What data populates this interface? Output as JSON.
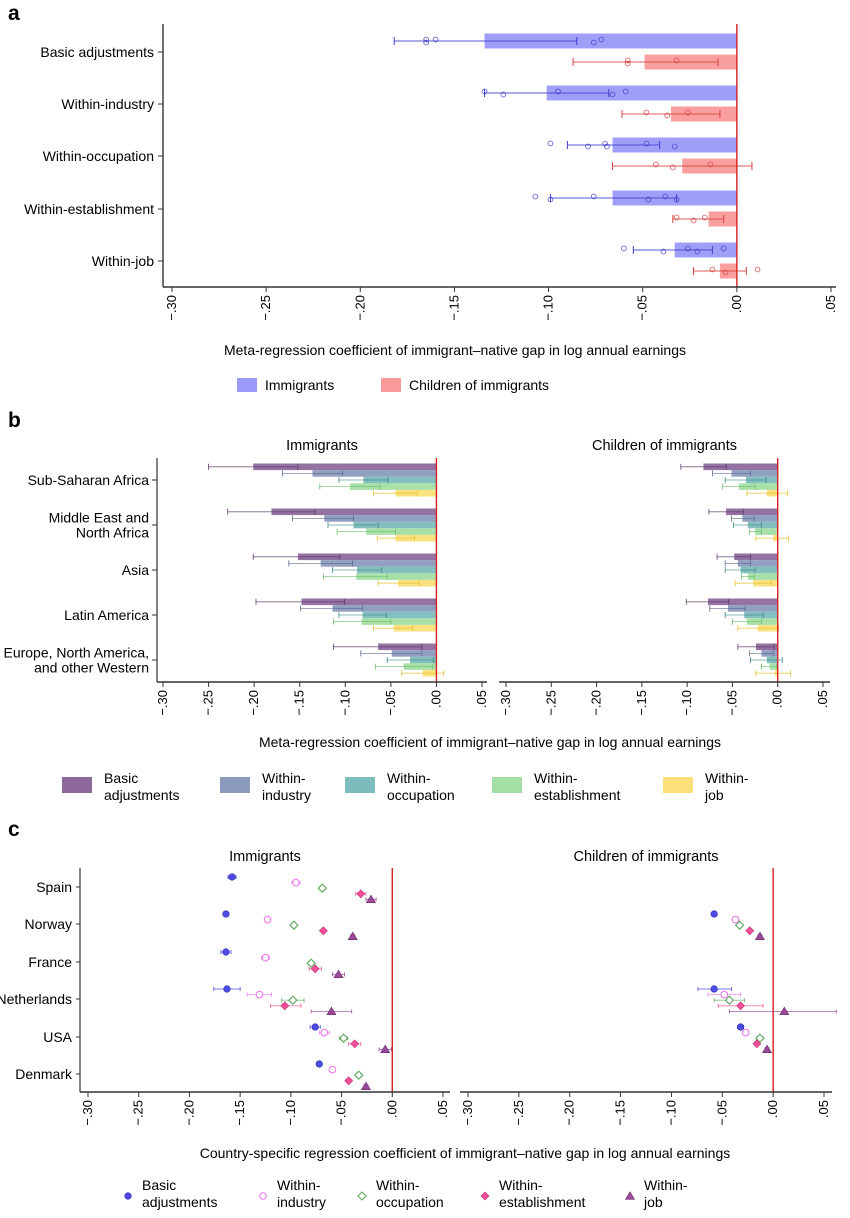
{
  "figure": {
    "panels": [
      "a",
      "b",
      "c"
    ]
  },
  "chart_data": [
    {
      "id": "a",
      "type": "bar",
      "orientation": "horizontal",
      "panel_label": "a",
      "xlabel": "Meta-regression coefficient of immigrant–native gap in log annual earnings",
      "ylabel": "",
      "xlim": [
        -0.3,
        0.05
      ],
      "xticks": [
        -0.3,
        -0.25,
        -0.2,
        -0.15,
        -0.1,
        -0.05,
        0.0,
        0.05
      ],
      "xtick_labels": [
        "−.30",
        "−.25",
        "−.20",
        "−.15",
        "−.10",
        "−.05",
        ".00",
        ".05"
      ],
      "reference_line": 0,
      "grid": false,
      "legend_position": "bottom",
      "categories": [
        "Basic adjustments",
        "Within-industry",
        "Within-occupation",
        "Within-establishment",
        "Within-job"
      ],
      "series": [
        {
          "name": "Immigrants",
          "color": "#9a9af8",
          "edge": "#3d3dcc",
          "values": [
            -0.134,
            -0.101,
            -0.066,
            -0.066,
            -0.033
          ],
          "ci_low": [
            -0.182,
            -0.134,
            -0.09,
            -0.099,
            -0.055
          ],
          "ci_high": [
            -0.085,
            -0.068,
            -0.041,
            -0.032,
            -0.013
          ],
          "points": [
            [
              -0.165,
              -0.165,
              -0.16,
              -0.076,
              -0.072
            ],
            [
              -0.134,
              -0.124,
              -0.095,
              -0.066,
              -0.059
            ],
            [
              -0.099,
              -0.079,
              -0.07,
              -0.069,
              -0.048,
              -0.033
            ],
            [
              -0.107,
              -0.099,
              -0.076,
              -0.047,
              -0.038,
              -0.032
            ],
            [
              -0.06,
              -0.039,
              -0.026,
              -0.021,
              -0.007
            ]
          ]
        },
        {
          "name": "Children of immigrants",
          "color": "#f99a9a",
          "edge": "#d84040",
          "values": [
            -0.049,
            -0.035,
            -0.029,
            -0.015,
            -0.009
          ],
          "ci_low": [
            -0.087,
            -0.061,
            -0.066,
            -0.034,
            -0.023
          ],
          "ci_high": [
            -0.01,
            -0.009,
            0.008,
            -0.007,
            0.005
          ],
          "points": [
            [
              -0.058,
              -0.058,
              -0.032
            ],
            [
              -0.048,
              -0.037,
              -0.026
            ],
            [
              -0.043,
              -0.034,
              -0.014
            ],
            [
              -0.032,
              -0.023,
              -0.017
            ],
            [
              -0.013,
              -0.006,
              0.011
            ]
          ]
        }
      ]
    },
    {
      "id": "b",
      "type": "bar",
      "orientation": "horizontal",
      "panel_label": "b",
      "xlabel": "Meta-regression coefficient of immigrant–native gap in log annual earnings",
      "xlim": [
        -0.3,
        0.05
      ],
      "xticks": [
        -0.3,
        -0.25,
        -0.2,
        -0.15,
        -0.1,
        -0.05,
        0.0,
        0.05
      ],
      "xtick_labels": [
        "−.30",
        "−.25",
        "−.20",
        "−.15",
        "−.10",
        "−.05",
        ".00",
        ".05"
      ],
      "reference_line": 0,
      "grid": false,
      "legend_position": "bottom",
      "categories": [
        "Sub-Saharan Africa",
        "Middle East and\nNorth Africa",
        "Asia",
        "Latin America",
        "Europe, North America,\nand other Western"
      ],
      "category_lines": [
        [
          "Sub-Saharan Africa"
        ],
        [
          "Middle East and",
          "North Africa"
        ],
        [
          "Asia"
        ],
        [
          "Latin America"
        ],
        [
          "Europe, North America,",
          "and other Western"
        ]
      ],
      "legend": [
        {
          "name": "Basic adjustments",
          "lines": [
            "Basic",
            "adjustments"
          ],
          "color": "#8e6a9c"
        },
        {
          "name": "Within-industry",
          "lines": [
            "Within-",
            "industry"
          ],
          "color": "#8b9abd"
        },
        {
          "name": "Within-occupation",
          "lines": [
            "Within-",
            "occupation"
          ],
          "color": "#7cbcbc"
        },
        {
          "name": "Within-establishment",
          "lines": [
            "Within-",
            "establishment"
          ],
          "color": "#a4dea4"
        },
        {
          "name": "Within-job",
          "lines": [
            "Within-",
            "job"
          ],
          "color": "#fbe07a"
        }
      ],
      "subplots": [
        {
          "title": "Immigrants",
          "values": [
            [
              -0.201,
              -0.136,
              -0.08,
              -0.095,
              -0.045
            ],
            [
              -0.181,
              -0.123,
              -0.091,
              -0.077,
              -0.045
            ],
            [
              -0.152,
              -0.127,
              -0.087,
              -0.088,
              -0.042
            ],
            [
              -0.148,
              -0.114,
              -0.081,
              -0.082,
              -0.047
            ],
            [
              -0.064,
              -0.049,
              -0.029,
              -0.036,
              -0.015
            ]
          ],
          "ci_low": [
            [
              -0.25,
              -0.169,
              -0.107,
              -0.128,
              -0.069
            ],
            [
              -0.229,
              -0.158,
              -0.119,
              -0.109,
              -0.065
            ],
            [
              -0.201,
              -0.162,
              -0.114,
              -0.124,
              -0.064
            ],
            [
              -0.198,
              -0.149,
              -0.107,
              -0.113,
              -0.069
            ],
            [
              -0.113,
              -0.083,
              -0.054,
              -0.067,
              -0.038
            ]
          ],
          "ci_high": [
            [
              -0.152,
              -0.103,
              -0.053,
              -0.062,
              -0.021
            ],
            [
              -0.133,
              -0.091,
              -0.064,
              -0.045,
              -0.024
            ],
            [
              -0.106,
              -0.092,
              -0.06,
              -0.054,
              -0.019
            ],
            [
              -0.101,
              -0.081,
              -0.055,
              -0.05,
              -0.026
            ],
            [
              -0.016,
              -0.016,
              -0.003,
              -0.004,
              0.008
            ]
          ]
        },
        {
          "title": "Children of immigrants",
          "values": [
            [
              -0.082,
              -0.051,
              -0.035,
              -0.043,
              -0.012
            ],
            [
              -0.057,
              -0.039,
              -0.033,
              -0.025,
              -0.005
            ],
            [
              -0.048,
              -0.044,
              -0.041,
              -0.033,
              -0.027
            ],
            [
              -0.077,
              -0.055,
              -0.037,
              -0.034,
              -0.022
            ],
            [
              -0.024,
              -0.018,
              -0.012,
              -0.009,
              -0.003
            ]
          ],
          "ci_low": [
            [
              -0.107,
              -0.072,
              -0.058,
              -0.061,
              -0.034
            ],
            [
              -0.076,
              -0.051,
              -0.049,
              -0.031,
              -0.024
            ],
            [
              -0.067,
              -0.058,
              -0.058,
              -0.04,
              -0.047
            ],
            [
              -0.101,
              -0.075,
              -0.058,
              -0.05,
              -0.044
            ],
            [
              -0.044,
              -0.031,
              -0.03,
              -0.018,
              -0.024
            ]
          ],
          "ci_high": [
            [
              -0.057,
              -0.03,
              -0.013,
              -0.025,
              0.011
            ],
            [
              -0.038,
              -0.026,
              -0.018,
              -0.018,
              0.012
            ],
            [
              -0.03,
              -0.03,
              -0.025,
              -0.026,
              -0.007
            ],
            [
              -0.054,
              -0.036,
              -0.016,
              -0.018,
              0.001
            ],
            [
              -0.004,
              -0.005,
              0.005,
              -0.001,
              0.014
            ]
          ]
        }
      ]
    },
    {
      "id": "c",
      "type": "scatter",
      "panel_label": "c",
      "xlabel": "Country-specific regression coefficient of immigrant–native gap in log annual earnings",
      "xlim": [
        -0.3,
        0.05
      ],
      "xticks": [
        -0.3,
        -0.25,
        -0.2,
        -0.15,
        -0.1,
        -0.05,
        0.0,
        0.05
      ],
      "xtick_labels": [
        "−.30",
        "−.25",
        "−.20",
        "−.15",
        "−.10",
        "−.05",
        ".00",
        ".05"
      ],
      "reference_line": 0,
      "grid": false,
      "legend_position": "bottom",
      "categories": [
        "Spain",
        "Norway",
        "France",
        "Netherlands",
        "USA",
        "Denmark"
      ],
      "legend": [
        {
          "name": "Basic adjustments",
          "lines": [
            "Basic",
            "adjustments"
          ],
          "marker": "circle-filled",
          "color": "#4d4de6"
        },
        {
          "name": "Within-industry",
          "lines": [
            "Within-",
            "industry"
          ],
          "marker": "circle-hollow",
          "color": "#ee82ee"
        },
        {
          "name": "Within-occupation",
          "lines": [
            "Within-",
            "occupation"
          ],
          "marker": "diamond-hollow",
          "color": "#5faa5f"
        },
        {
          "name": "Within-establishment",
          "lines": [
            "Within-",
            "establishment"
          ],
          "marker": "diamond-filled",
          "color": "#f0509a"
        },
        {
          "name": "Within-job",
          "lines": [
            "Within-",
            "job"
          ],
          "marker": "triangle-filled",
          "color": "#9b4a9b"
        }
      ],
      "subplots": [
        {
          "title": "Immigrants",
          "values": [
            [
              -0.158,
              -0.095,
              -0.069,
              -0.031,
              -0.021
            ],
            [
              -0.164,
              -0.123,
              -0.097,
              -0.068,
              -0.039
            ],
            [
              -0.164,
              -0.125,
              -0.08,
              -0.076,
              -0.053
            ],
            [
              -0.163,
              -0.131,
              -0.098,
              -0.106,
              -0.06
            ],
            [
              -0.076,
              -0.067,
              -0.048,
              -0.037,
              -0.007
            ],
            [
              -0.072,
              -0.059,
              -0.033,
              -0.043,
              -0.026
            ]
          ],
          "ci_low": [
            [
              -0.162,
              -0.099,
              -0.072,
              -0.036,
              -0.026
            ],
            [
              -0.166,
              -0.125,
              -0.099,
              -0.07,
              -0.041
            ],
            [
              -0.169,
              -0.129,
              -0.083,
              -0.082,
              -0.059
            ],
            [
              -0.176,
              -0.143,
              -0.109,
              -0.12,
              -0.08
            ],
            [
              -0.081,
              -0.072,
              -0.052,
              -0.043,
              -0.013
            ],
            [
              -0.074,
              -0.061,
              -0.036,
              -0.045,
              -0.028
            ]
          ],
          "ci_high": [
            [
              -0.154,
              -0.091,
              -0.066,
              -0.026,
              -0.016
            ],
            [
              -0.162,
              -0.121,
              -0.095,
              -0.066,
              -0.037
            ],
            [
              -0.159,
              -0.121,
              -0.077,
              -0.07,
              -0.047
            ],
            [
              -0.15,
              -0.119,
              -0.087,
              -0.09,
              -0.04
            ],
            [
              -0.071,
              -0.062,
              -0.044,
              -0.031,
              -0.001
            ],
            [
              -0.07,
              -0.057,
              -0.03,
              -0.041,
              -0.024
            ]
          ]
        },
        {
          "title": "Children of immigrants",
          "values": [
            [
              null,
              null,
              null,
              null,
              null
            ],
            [
              -0.058,
              -0.037,
              -0.033,
              -0.023,
              -0.013
            ],
            [
              null,
              null,
              null,
              null,
              null
            ],
            [
              -0.058,
              -0.048,
              -0.043,
              -0.032,
              0.011
            ],
            [
              -0.032,
              -0.027,
              -0.013,
              -0.016,
              -0.006
            ],
            [
              null,
              null,
              null,
              null,
              null
            ]
          ],
          "ci_low": [
            [
              null,
              null,
              null,
              null,
              null
            ],
            [
              -0.06,
              -0.039,
              -0.035,
              -0.025,
              -0.015
            ],
            [
              null,
              null,
              null,
              null,
              null
            ],
            [
              -0.074,
              -0.064,
              -0.058,
              -0.054,
              -0.043
            ],
            [
              -0.035,
              -0.03,
              -0.016,
              -0.018,
              -0.008
            ],
            [
              null,
              null,
              null,
              null,
              null
            ]
          ],
          "ci_high": [
            [
              null,
              null,
              null,
              null,
              null
            ],
            [
              -0.056,
              -0.035,
              -0.031,
              -0.021,
              -0.011
            ],
            [
              null,
              null,
              null,
              null,
              null
            ],
            [
              -0.041,
              -0.032,
              -0.028,
              -0.01,
              0.062
            ],
            [
              -0.029,
              -0.024,
              -0.01,
              -0.014,
              -0.004
            ],
            [
              null,
              null,
              null,
              null,
              null
            ]
          ]
        }
      ]
    }
  ],
  "notes": "Panel c children-of-immigrants rows (Norway, Netherlands, Denmark shown) are offset in the original; null rows have no markers."
}
